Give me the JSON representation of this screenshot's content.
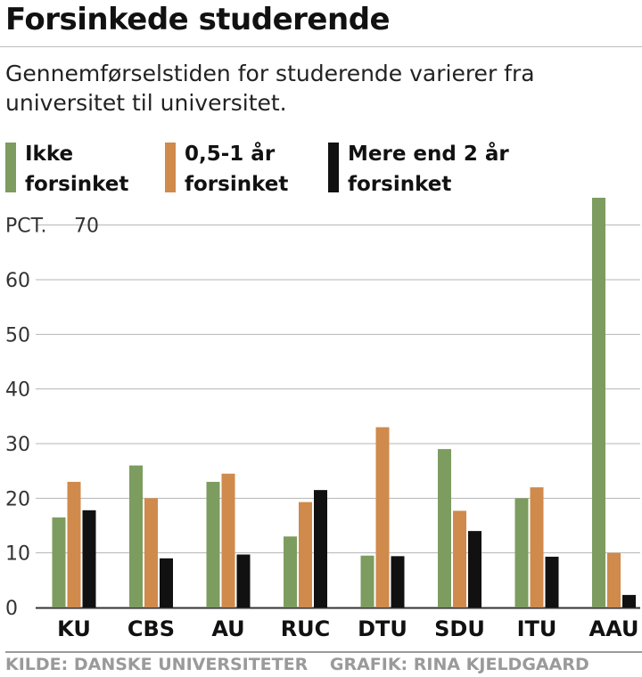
{
  "title": "Forsinkede studerende",
  "subtitle": "Gennemførselstiden for studerende varierer fra universitet til universitet.",
  "legend": [
    {
      "label": "Ikke forsinket",
      "color": "#7d9c5f"
    },
    {
      "label": "0,5-1 år forsinket",
      "color": "#cf8a4c"
    },
    {
      "label": "Mere end 2 år forsinket",
      "color": "#111111"
    }
  ],
  "chart_data": {
    "type": "bar",
    "categories": [
      "KU",
      "CBS",
      "AU",
      "RUC",
      "DTU",
      "SDU",
      "ITU",
      "AAU"
    ],
    "series": [
      {
        "name": "Ikke forsinket",
        "color": "#7d9c5f",
        "values": [
          16.5,
          26,
          23,
          13,
          9.5,
          29,
          20,
          75
        ]
      },
      {
        "name": "0,5-1 år forsinket",
        "color": "#cf8a4c",
        "values": [
          23,
          20,
          24.5,
          19.3,
          33,
          17.7,
          22,
          10
        ]
      },
      {
        "name": "Mere end 2 år forsinket",
        "color": "#111111",
        "values": [
          17.8,
          9,
          9.7,
          21.5,
          9.4,
          14,
          9.3,
          2.3
        ]
      }
    ],
    "ylabel": "PCT.",
    "yticks": [
      0,
      10,
      20,
      30,
      40,
      50,
      60,
      70
    ],
    "ylim": [
      0,
      75
    ],
    "grid": true
  },
  "footer": {
    "source": "KILDE: DANSKE UNIVERSITETER",
    "credit": "GRAFIK: RINA KJELDGAARD"
  }
}
